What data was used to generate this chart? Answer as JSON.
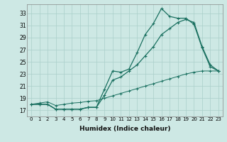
{
  "xlabel": "Humidex (Indice chaleur)",
  "ylabel": "",
  "bg_color": "#cde8e4",
  "grid_color": "#aacfca",
  "line_color": "#1a7060",
  "xlim": [
    -0.5,
    23.5
  ],
  "ylim": [
    16.0,
    34.5
  ],
  "yticks": [
    17,
    19,
    21,
    23,
    25,
    27,
    29,
    31,
    33
  ],
  "xticks": [
    0,
    1,
    2,
    3,
    4,
    5,
    6,
    7,
    8,
    9,
    10,
    11,
    12,
    13,
    14,
    15,
    16,
    17,
    18,
    19,
    20,
    21,
    22,
    23
  ],
  "series1": [
    18.0,
    18.0,
    18.0,
    17.2,
    17.2,
    17.2,
    17.2,
    17.5,
    17.5,
    20.5,
    23.5,
    23.3,
    23.8,
    26.5,
    29.5,
    31.3,
    33.8,
    32.5,
    32.2,
    32.2,
    31.2,
    27.3,
    24.2,
    23.5
  ],
  "series2": [
    18.0,
    18.0,
    18.0,
    17.2,
    17.2,
    17.2,
    17.2,
    17.5,
    17.5,
    19.5,
    22.0,
    22.5,
    23.5,
    24.5,
    26.0,
    27.5,
    29.5,
    30.5,
    31.5,
    32.0,
    31.5,
    27.5,
    24.5,
    23.5
  ],
  "series3": [
    18.0,
    18.2,
    18.4,
    17.8,
    18.0,
    18.2,
    18.3,
    18.5,
    18.6,
    19.0,
    19.4,
    19.8,
    20.2,
    20.6,
    21.0,
    21.4,
    21.8,
    22.2,
    22.6,
    23.0,
    23.3,
    23.5,
    23.5,
    23.5
  ]
}
